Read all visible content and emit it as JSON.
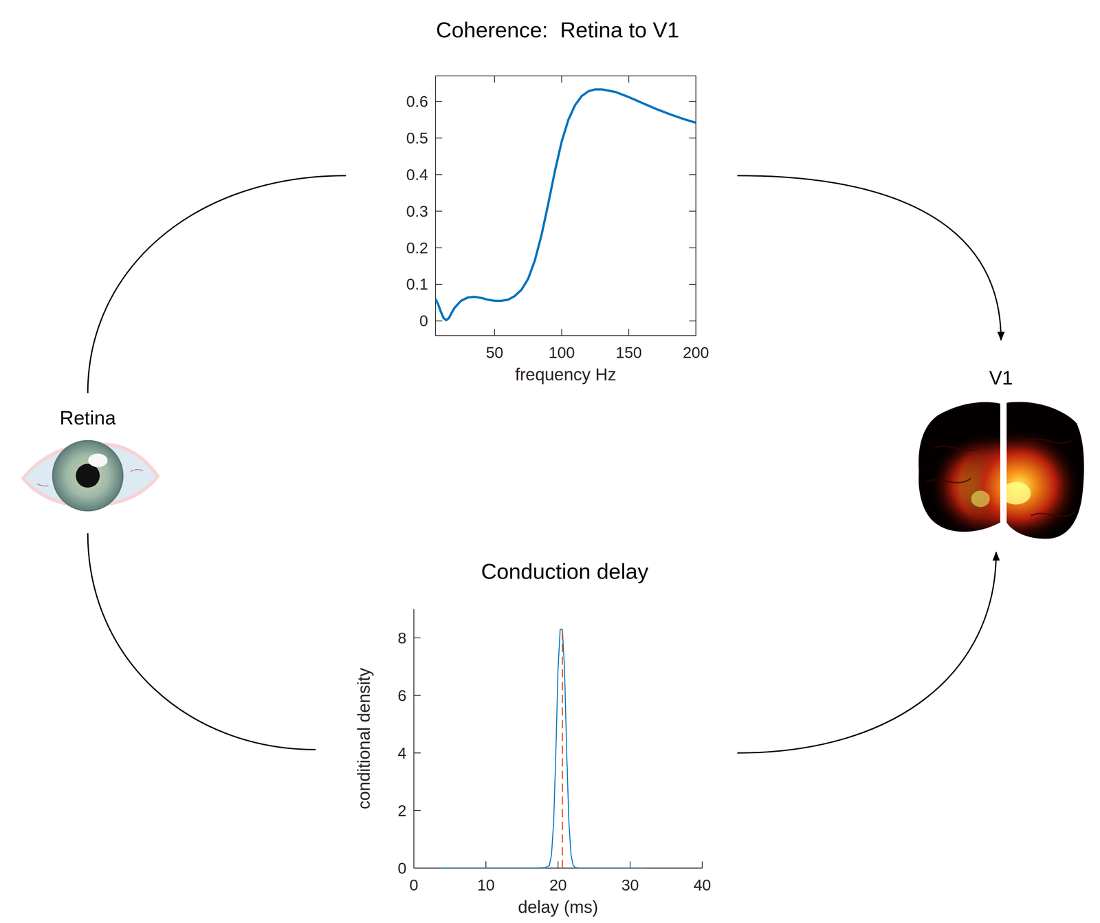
{
  "nodes": [
    {
      "label": "Retina"
    },
    {
      "label": "V1"
    }
  ],
  "chart_data": [
    {
      "type": "line",
      "title": "Coherence:  Retina to V1",
      "x_label": "frequency Hz",
      "x": [
        6,
        8,
        10,
        12,
        14,
        16,
        18,
        20,
        25,
        30,
        35,
        40,
        45,
        50,
        55,
        60,
        65,
        70,
        75,
        80,
        85,
        90,
        95,
        100,
        105,
        110,
        115,
        120,
        125,
        130,
        140,
        150,
        160,
        170,
        180,
        190,
        200
      ],
      "series": [
        {
          "color": "#0072bd",
          "values": [
            0.06,
            0.045,
            0.025,
            0.008,
            0.002,
            0.008,
            0.022,
            0.035,
            0.055,
            0.064,
            0.066,
            0.063,
            0.058,
            0.055,
            0.055,
            0.058,
            0.068,
            0.085,
            0.115,
            0.165,
            0.235,
            0.32,
            0.41,
            0.49,
            0.55,
            0.59,
            0.615,
            0.628,
            0.633,
            0.633,
            0.626,
            0.612,
            0.596,
            0.58,
            0.566,
            0.553,
            0.542
          ]
        }
      ],
      "xlim": [
        6,
        200
      ],
      "ylim": [
        -0.04,
        0.67
      ],
      "xticks": [
        50,
        100,
        150,
        200
      ],
      "yticks": [
        0,
        0.1,
        0.2,
        0.3,
        0.4,
        0.5,
        0.6
      ]
    },
    {
      "type": "line",
      "title": "Conduction delay",
      "x_label": "delay (ms)",
      "y_label": "conditional density",
      "x": [
        3.5,
        10,
        17,
        18.2,
        18.8,
        19.1,
        19.4,
        19.7,
        20,
        20.3,
        20.6,
        20.9,
        21.2,
        21.5,
        21.8,
        22.1,
        22.4,
        23,
        24,
        32
      ],
      "series": [
        {
          "color": "#0072bd",
          "values": [
            0,
            0,
            0,
            0.01,
            0.09,
            0.47,
            1.64,
            4.04,
            6.93,
            8.3,
            8.3,
            6.93,
            4.04,
            1.64,
            0.47,
            0.09,
            0.01,
            0,
            0,
            0
          ]
        }
      ],
      "vline": 20.6,
      "xlim": [
        0,
        40
      ],
      "ylim": [
        0,
        9
      ],
      "xticks": [
        0,
        10,
        20,
        30,
        40
      ],
      "yticks": [
        0,
        2,
        4,
        6,
        8
      ]
    }
  ]
}
